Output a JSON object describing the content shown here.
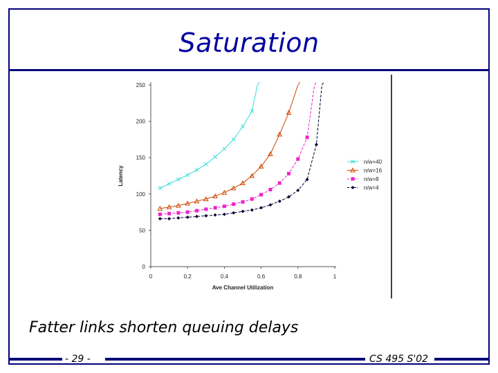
{
  "slide": {
    "title": "Saturation",
    "caption": "Fatter links shorten queuing delays",
    "page_number": "- 29 -",
    "course": "CS 495 S'02",
    "frame_color": "#00007a",
    "title_color": "#0000a0"
  },
  "chart_data": {
    "type": "line",
    "title": "",
    "xlabel": "Ave Channel Utilization",
    "ylabel": "Latency",
    "xlim": [
      0,
      1
    ],
    "ylim": [
      0,
      250
    ],
    "x_ticks": [
      "0",
      "0.2",
      "0.4",
      "0.6",
      "0.8",
      "1"
    ],
    "y_ticks": [
      "0",
      "50",
      "100",
      "150",
      "200",
      "250"
    ],
    "grid": false,
    "legend_position": "right",
    "series": [
      {
        "name": "n/w=40",
        "color": "#33dddd",
        "marker": "x",
        "dashed": false,
        "asymptote": 0.58,
        "x": [
          0.05,
          0.1,
          0.15,
          0.2,
          0.25,
          0.3,
          0.35,
          0.4,
          0.45,
          0.5,
          0.55,
          0.58
        ],
        "y": [
          108,
          114,
          120,
          126,
          133,
          141,
          151,
          162,
          175,
          193,
          214,
          250
        ]
      },
      {
        "name": "n/w=16",
        "color": "#cc4400",
        "marker": "triangle",
        "dashed": false,
        "asymptote": 0.8,
        "x": [
          0.05,
          0.1,
          0.15,
          0.2,
          0.25,
          0.3,
          0.35,
          0.4,
          0.45,
          0.5,
          0.55,
          0.6,
          0.65,
          0.7,
          0.75,
          0.8
        ],
        "y": [
          80,
          82,
          84,
          87,
          90,
          93,
          97,
          102,
          108,
          115,
          125,
          138,
          155,
          182,
          212,
          250
        ]
      },
      {
        "name": "n/w=8",
        "color": "#ee22cc",
        "marker": "square",
        "dashed": true,
        "asymptote": 0.89,
        "x": [
          0.05,
          0.1,
          0.15,
          0.2,
          0.25,
          0.3,
          0.35,
          0.4,
          0.45,
          0.5,
          0.55,
          0.6,
          0.65,
          0.7,
          0.75,
          0.8,
          0.85,
          0.89
        ],
        "y": [
          72,
          73,
          74,
          75,
          77,
          79,
          81,
          83,
          86,
          89,
          93,
          99,
          106,
          115,
          128,
          148,
          178,
          250
        ]
      },
      {
        "name": "n/w=4",
        "color": "#000033",
        "marker": "diamond",
        "dashed": true,
        "asymptote": 0.93,
        "x": [
          0.05,
          0.1,
          0.15,
          0.2,
          0.25,
          0.3,
          0.35,
          0.4,
          0.45,
          0.5,
          0.55,
          0.6,
          0.65,
          0.7,
          0.75,
          0.8,
          0.85,
          0.9,
          0.93
        ],
        "y": [
          66,
          66,
          67,
          68,
          69,
          70,
          71,
          72,
          74,
          76,
          78,
          81,
          85,
          90,
          96,
          105,
          120,
          168,
          250
        ]
      }
    ]
  }
}
